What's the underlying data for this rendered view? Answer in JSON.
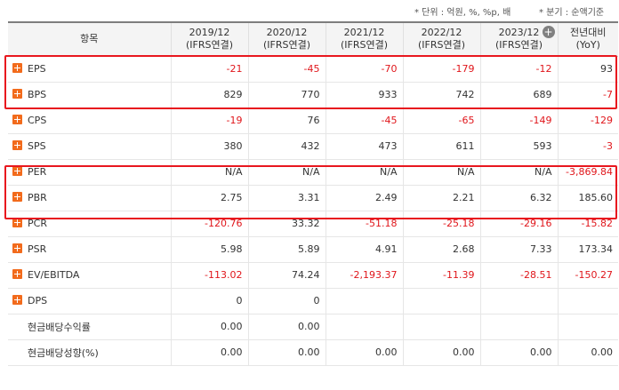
{
  "notes": {
    "unit": "* 단위 : 억원, %, %p, 배",
    "period": "* 분기 : 순액기준"
  },
  "header": {
    "item_label": "항목",
    "add_column_icon": "plus-circle-icon",
    "columns": [
      {
        "year": "2019/12",
        "basis": "(IFRS연결)"
      },
      {
        "year": "2020/12",
        "basis": "(IFRS연결)"
      },
      {
        "year": "2021/12",
        "basis": "(IFRS연결)"
      },
      {
        "year": "2022/12",
        "basis": "(IFRS연결)"
      },
      {
        "year": "2023/12",
        "basis": "(IFRS연결)"
      },
      {
        "year": "전년대비",
        "basis": "(YoY)"
      }
    ]
  },
  "colors": {
    "negative": "#e0161b",
    "expand_icon": "#f26b1c",
    "highlight_box": "#e8171e"
  },
  "rows": [
    {
      "label": "EPS",
      "expandable": true,
      "cells": [
        {
          "v": "-21",
          "neg": true
        },
        {
          "v": "-45",
          "neg": true
        },
        {
          "v": "-70",
          "neg": true
        },
        {
          "v": "-179",
          "neg": true
        },
        {
          "v": "-12",
          "neg": true
        },
        {
          "v": "93",
          "neg": false
        }
      ]
    },
    {
      "label": "BPS",
      "expandable": true,
      "cells": [
        {
          "v": "829",
          "neg": false
        },
        {
          "v": "770",
          "neg": false
        },
        {
          "v": "933",
          "neg": false
        },
        {
          "v": "742",
          "neg": false
        },
        {
          "v": "689",
          "neg": false
        },
        {
          "v": "-7",
          "neg": true
        }
      ]
    },
    {
      "label": "CPS",
      "expandable": true,
      "cells": [
        {
          "v": "-19",
          "neg": true
        },
        {
          "v": "76",
          "neg": false
        },
        {
          "v": "-45",
          "neg": true
        },
        {
          "v": "-65",
          "neg": true
        },
        {
          "v": "-149",
          "neg": true
        },
        {
          "v": "-129",
          "neg": true
        }
      ]
    },
    {
      "label": "SPS",
      "expandable": true,
      "cells": [
        {
          "v": "380",
          "neg": false
        },
        {
          "v": "432",
          "neg": false
        },
        {
          "v": "473",
          "neg": false
        },
        {
          "v": "611",
          "neg": false
        },
        {
          "v": "593",
          "neg": false
        },
        {
          "v": "-3",
          "neg": true
        }
      ]
    },
    {
      "label": "PER",
      "expandable": true,
      "cells": [
        {
          "v": "N/A",
          "neg": false
        },
        {
          "v": "N/A",
          "neg": false
        },
        {
          "v": "N/A",
          "neg": false
        },
        {
          "v": "N/A",
          "neg": false
        },
        {
          "v": "N/A",
          "neg": false
        },
        {
          "v": "-3,869.84",
          "neg": true
        }
      ]
    },
    {
      "label": "PBR",
      "expandable": true,
      "cells": [
        {
          "v": "2.75",
          "neg": false
        },
        {
          "v": "3.31",
          "neg": false
        },
        {
          "v": "2.49",
          "neg": false
        },
        {
          "v": "2.21",
          "neg": false
        },
        {
          "v": "6.32",
          "neg": false
        },
        {
          "v": "185.60",
          "neg": false
        }
      ]
    },
    {
      "label": "PCR",
      "expandable": true,
      "cells": [
        {
          "v": "-120.76",
          "neg": true
        },
        {
          "v": "33.32",
          "neg": false
        },
        {
          "v": "-51.18",
          "neg": true
        },
        {
          "v": "-25.18",
          "neg": true
        },
        {
          "v": "-29.16",
          "neg": true
        },
        {
          "v": "-15.82",
          "neg": true
        }
      ]
    },
    {
      "label": "PSR",
      "expandable": true,
      "cells": [
        {
          "v": "5.98",
          "neg": false
        },
        {
          "v": "5.89",
          "neg": false
        },
        {
          "v": "4.91",
          "neg": false
        },
        {
          "v": "2.68",
          "neg": false
        },
        {
          "v": "7.33",
          "neg": false
        },
        {
          "v": "173.34",
          "neg": false
        }
      ]
    },
    {
      "label": "EV/EBITDA",
      "expandable": true,
      "cells": [
        {
          "v": "-113.02",
          "neg": true
        },
        {
          "v": "74.24",
          "neg": false
        },
        {
          "v": "-2,193.37",
          "neg": true
        },
        {
          "v": "-11.39",
          "neg": true
        },
        {
          "v": "-28.51",
          "neg": true
        },
        {
          "v": "-150.27",
          "neg": true
        }
      ]
    },
    {
      "label": "DPS",
      "expandable": true,
      "cells": [
        {
          "v": "0",
          "neg": false
        },
        {
          "v": "0",
          "neg": false
        },
        {
          "v": "",
          "neg": false
        },
        {
          "v": "",
          "neg": false
        },
        {
          "v": "",
          "neg": false
        },
        {
          "v": "",
          "neg": false
        }
      ]
    },
    {
      "label": "현금배당수익률",
      "expandable": false,
      "cells": [
        {
          "v": "0.00",
          "neg": false
        },
        {
          "v": "0.00",
          "neg": false
        },
        {
          "v": "",
          "neg": false
        },
        {
          "v": "",
          "neg": false
        },
        {
          "v": "",
          "neg": false
        },
        {
          "v": "",
          "neg": false
        }
      ]
    },
    {
      "label": "현금배당성향(%)",
      "expandable": false,
      "cells": [
        {
          "v": "0.00",
          "neg": false
        },
        {
          "v": "0.00",
          "neg": false
        },
        {
          "v": "0.00",
          "neg": false
        },
        {
          "v": "0.00",
          "neg": false
        },
        {
          "v": "0.00",
          "neg": false
        },
        {
          "v": "0.00",
          "neg": false
        }
      ]
    }
  ]
}
